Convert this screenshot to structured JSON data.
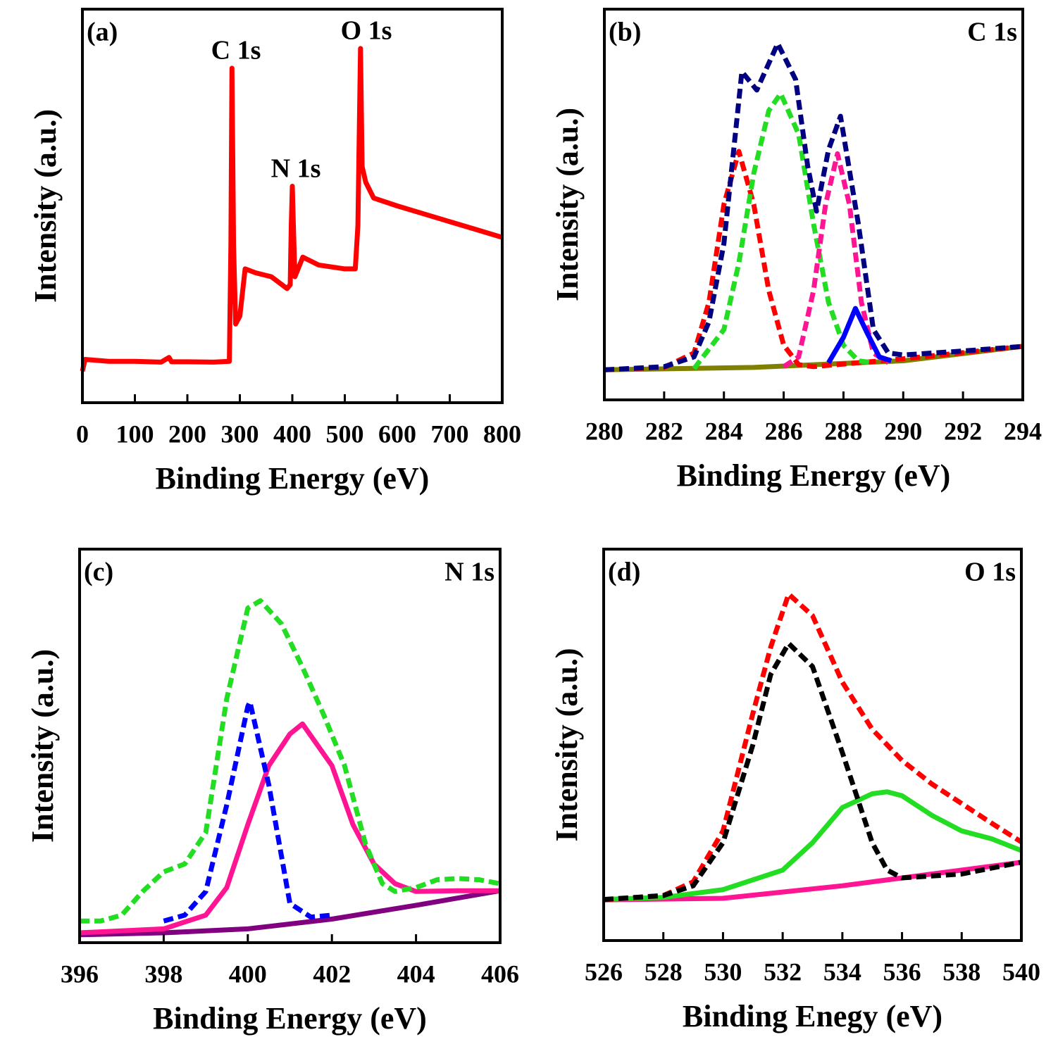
{
  "chart_data": [
    {
      "type": "line",
      "panel_label": "(a)",
      "annotations": [
        "C 1s",
        "N 1s",
        "O 1s"
      ],
      "xlabel": "Binding Energy (eV)",
      "ylabel": "Intensity (a.u.)",
      "xlim": [
        0,
        800
      ],
      "xticks": [
        0,
        100,
        200,
        300,
        400,
        500,
        600,
        700,
        800
      ],
      "ylim": [
        0,
        100
      ],
      "series": [
        {
          "color": "#ff0000",
          "style": "solid",
          "x": [
            0,
            5,
            50,
            100,
            150,
            165,
            170,
            200,
            250,
            280,
            283,
            285,
            288,
            292,
            300,
            310,
            330,
            360,
            390,
            396,
            398,
            400,
            402,
            405,
            420,
            450,
            500,
            520,
            525,
            530,
            533,
            540,
            555,
            600,
            650,
            700,
            750,
            800
          ],
          "values": [
            8,
            11,
            10.5,
            10.5,
            10.3,
            11.5,
            10.4,
            10.4,
            10.3,
            10.5,
            40,
            85,
            40,
            20,
            22,
            34,
            33,
            32,
            29,
            30,
            45,
            55,
            45,
            32,
            37,
            35,
            34,
            34,
            45,
            90,
            60,
            56,
            52,
            50,
            48,
            46,
            44,
            42
          ]
        }
      ]
    },
    {
      "type": "line",
      "panel_label": "(b)",
      "title": "C 1s",
      "xlabel": "Binding Energy (eV)",
      "ylabel": "Intensity (a.u.)",
      "xlim": [
        280,
        294
      ],
      "xticks": [
        280,
        282,
        284,
        286,
        288,
        290,
        292,
        294
      ],
      "ylim": [
        0,
        100
      ],
      "series": [
        {
          "color": "#808000",
          "style": "solid",
          "x": [
            280,
            285,
            290,
            294
          ],
          "values": [
            7.7,
            8.3,
            10,
            13.7
          ]
        },
        {
          "color": "#ff0000",
          "style": "dashed",
          "x": [
            280,
            282,
            283,
            283.5,
            284,
            284.5,
            285,
            285.5,
            286,
            286.5,
            287,
            290,
            294
          ],
          "values": [
            7.7,
            8.3,
            12,
            25,
            50,
            63.6,
            50,
            28,
            14,
            9,
            8.5,
            10.5,
            13.7
          ]
        },
        {
          "color": "#22dd22",
          "style": "dashed",
          "x": [
            283,
            284,
            284.5,
            285,
            285.5,
            285.9,
            286.5,
            287,
            287.5,
            288,
            288.5,
            289
          ],
          "values": [
            8,
            18,
            35,
            58,
            74,
            78.4,
            68,
            45,
            25,
            14,
            10,
            9.5
          ]
        },
        {
          "color": "#ff1493",
          "style": "dashed",
          "x": [
            286,
            286.5,
            287,
            287.4,
            287.8,
            288.2,
            288.6,
            289,
            289.5
          ],
          "values": [
            8.5,
            11,
            28,
            50,
            63,
            50,
            25,
            12,
            9.5
          ]
        },
        {
          "color": "#0000ff",
          "style": "solid",
          "x": [
            287.5,
            288,
            288.4,
            288.8,
            289.2,
            289.6
          ],
          "values": [
            9.5,
            16,
            23.4,
            17,
            11,
            10
          ]
        },
        {
          "color": "#000080",
          "style": "dashed",
          "x": [
            280,
            282,
            283,
            283.5,
            284,
            284.6,
            285.1,
            285.8,
            286.4,
            286.8,
            287.1,
            287.5,
            287.9,
            288.5,
            289,
            289.5,
            290,
            292,
            294
          ],
          "values": [
            7.7,
            8.5,
            11,
            20,
            40,
            84,
            79.3,
            91.2,
            82,
            60,
            48.3,
            64,
            72.6,
            45,
            18,
            12,
            11.5,
            12.5,
            13.7
          ]
        }
      ]
    },
    {
      "type": "line",
      "panel_label": "(c)",
      "title": "N 1s",
      "xlabel": "Binding Energy (eV)",
      "ylabel": "Intensity (a.u.)",
      "xlim": [
        396,
        406
      ],
      "xticks": [
        396,
        398,
        400,
        402,
        404,
        406
      ],
      "ylim": [
        0,
        100
      ],
      "series": [
        {
          "color": "#800080",
          "style": "solid",
          "x": [
            396,
            398,
            400,
            402,
            404,
            406
          ],
          "values": [
            2,
            2.5,
            3.5,
            6,
            9.5,
            13.2
          ]
        },
        {
          "color": "#ff1493",
          "style": "solid",
          "x": [
            396,
            398,
            399,
            399.5,
            400,
            400.5,
            401,
            401.3,
            402,
            402.5,
            403,
            403.5,
            404,
            405,
            406
          ],
          "values": [
            2.5,
            3.5,
            7,
            14,
            30,
            45,
            53,
            55.6,
            45,
            30,
            20,
            15,
            13,
            13.2,
            13.2
          ]
        },
        {
          "color": "#0000ff",
          "style": "dashed",
          "x": [
            398,
            398.5,
            399,
            399.5,
            400,
            400.05,
            400.5,
            401,
            401.5,
            402
          ],
          "values": [
            5.5,
            7,
            13,
            35,
            60,
            61.2,
            40,
            10,
            6.5,
            7
          ]
        },
        {
          "color": "#22dd22",
          "style": "dashed",
          "x": [
            396,
            396.5,
            397,
            397.5,
            398,
            398.5,
            399,
            399.5,
            400,
            400.3,
            400.8,
            401.3,
            401.8,
            402.3,
            402.8,
            403.2,
            403.5,
            404,
            404.5,
            405,
            405.5,
            406
          ],
          "values": [
            5.5,
            5.5,
            7,
            13,
            18,
            20,
            28,
            62,
            85,
            86.9,
            81,
            70,
            58,
            45,
            25,
            15,
            13,
            14,
            16,
            16.3,
            16,
            15
          ]
        }
      ]
    },
    {
      "type": "line",
      "panel_label": "(d)",
      "title": "O 1s",
      "xlabel": "Binding Enegy (eV)",
      "ylabel": "Intensity (a.u.)",
      "xlim": [
        526,
        540
      ],
      "xticks": [
        526,
        528,
        530,
        532,
        534,
        536,
        538,
        540
      ],
      "ylim": [
        0,
        100
      ],
      "series": [
        {
          "color": "#ff1493",
          "style": "solid",
          "x": [
            526,
            530,
            534,
            537,
            540
          ],
          "values": [
            10.4,
            10.8,
            14,
            17,
            20
          ]
        },
        {
          "color": "#22dd22",
          "style": "solid",
          "x": [
            526,
            528,
            530,
            532,
            533,
            534,
            535,
            535.5,
            536,
            537,
            538,
            539,
            540
          ],
          "values": [
            10.5,
            11,
            13,
            18,
            25,
            34,
            37.5,
            38,
            37,
            32,
            28,
            26,
            23
          ]
        },
        {
          "color": "#ff0000",
          "style": "dashed",
          "x": [
            526,
            528,
            529,
            530,
            531,
            531.6,
            532.2,
            533,
            534,
            535,
            536,
            537,
            538,
            539,
            540
          ],
          "values": [
            10.4,
            11.5,
            15,
            28,
            58,
            75,
            88.5,
            83,
            66,
            54,
            46,
            40,
            35,
            30,
            25.2
          ]
        },
        {
          "color": "#000000",
          "style": "dashed",
          "x": [
            526,
            528,
            529,
            530,
            531,
            531.6,
            532.2,
            533,
            534,
            535,
            535.5,
            536,
            537,
            538,
            539,
            540
          ],
          "values": [
            10.5,
            11.5,
            14,
            25,
            50,
            68,
            75.9,
            70,
            48,
            25,
            18,
            16,
            16.5,
            17,
            18.5,
            20
          ]
        }
      ]
    }
  ]
}
